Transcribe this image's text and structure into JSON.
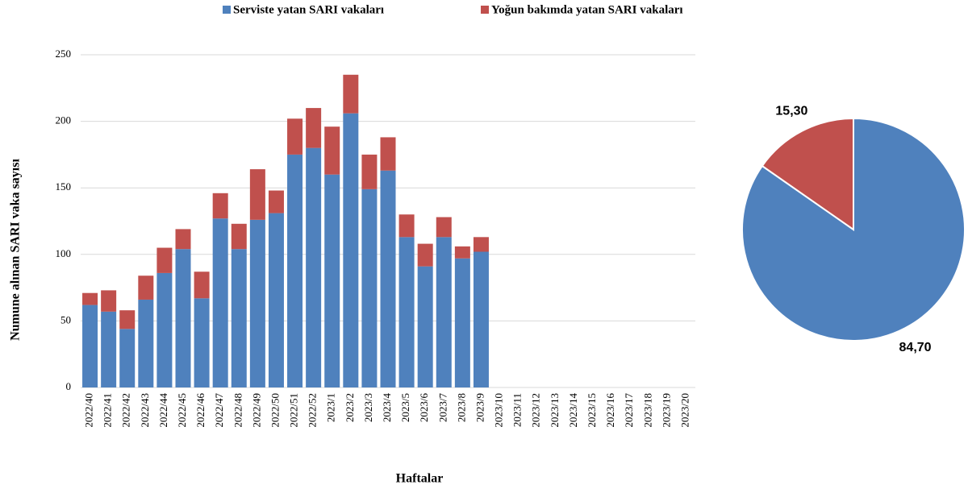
{
  "chart_data": [
    {
      "type": "bar",
      "stacked": true,
      "y_label": "Numune alınan SARI vaka sayısı",
      "x_label": "Haftalar",
      "categories": [
        "2022/40",
        "2022/41",
        "2022/42",
        "2022/43",
        "2022/44",
        "2022/45",
        "2022/46",
        "2022/47",
        "2022/48",
        "2022/49",
        "2022/50",
        "2022/51",
        "2022/52",
        "2023/1",
        "2023/2",
        "2023/3",
        "2023/4",
        "2023/5",
        "2023/6",
        "2023/7",
        "2023/8",
        "2023/9",
        "2023/10",
        "2023/11",
        "2023/12",
        "2023/13",
        "2023/14",
        "2023/15",
        "2023/16",
        "2023/17",
        "2023/18",
        "2023/19",
        "2023/20"
      ],
      "series": [
        {
          "name": "Serviste yatan SARI vakaları",
          "color": "#4f81bd",
          "values": [
            62,
            57,
            44,
            66,
            86,
            104,
            67,
            127,
            104,
            126,
            131,
            175,
            180,
            160,
            206,
            149,
            163,
            113,
            91,
            113,
            97,
            102,
            null,
            null,
            null,
            null,
            null,
            null,
            null,
            null,
            null,
            null,
            null
          ]
        },
        {
          "name": "Yoğun bakımda yatan SARI vakaları",
          "color": "#c0504d",
          "values": [
            9,
            16,
            14,
            18,
            19,
            15,
            20,
            19,
            19,
            38,
            17,
            27,
            30,
            36,
            29,
            26,
            25,
            17,
            17,
            15,
            9,
            11,
            null,
            null,
            null,
            null,
            null,
            null,
            null,
            null,
            null,
            null,
            null
          ]
        }
      ],
      "ylim": [
        0,
        250
      ],
      "yticks": [
        0,
        50,
        100,
        150,
        200,
        250
      ],
      "grid": true,
      "legend": "top"
    },
    {
      "type": "pie",
      "values": [
        84.7,
        15.3
      ],
      "value_labels": [
        "84,70",
        "15,30"
      ],
      "colors": [
        "#4f81bd",
        "#c0504d"
      ]
    }
  ]
}
